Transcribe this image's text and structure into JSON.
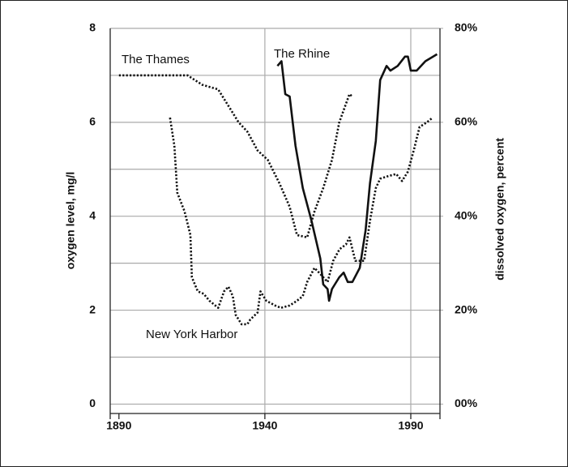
{
  "chart_data": {
    "type": "line",
    "y_label": "oxygen level, mg/l",
    "y2_label": "dissolved oxygen, percent",
    "xlim": [
      1887,
      2000
    ],
    "xticks": [
      1890,
      1940,
      1990
    ],
    "ylim": [
      -0.2,
      8
    ],
    "yticks": [
      0,
      2,
      4,
      6,
      8
    ],
    "yticks_minor": [
      1,
      3,
      5,
      7
    ],
    "y2lim": [
      -2,
      80
    ],
    "y2ticks": [
      {
        "value": 0,
        "label": "00%"
      },
      {
        "value": 20,
        "label": "20%"
      },
      {
        "value": 40,
        "label": "40%"
      },
      {
        "value": 60,
        "label": "60%"
      },
      {
        "value": 80,
        "label": "80%"
      }
    ],
    "grid": true,
    "series": [
      {
        "name": "The Thames",
        "color": "#111111",
        "style": "dotted",
        "x": [
          1890,
          1913.5,
          1918.5,
          1924,
          1927,
          1931,
          1934,
          1937.5,
          1941,
          1945,
          1948.5,
          1951,
          1954.5,
          1957,
          1960,
          1963,
          1965.5,
          1969,
          1970
        ],
        "values": [
          7.0,
          7.0,
          6.8,
          6.7,
          6.4,
          6.0,
          5.8,
          5.4,
          5.2,
          4.7,
          4.2,
          3.6,
          3.55,
          4.1,
          4.6,
          5.2,
          6.0,
          6.6,
          6.55
        ]
      },
      {
        "name": "The Rhine",
        "color": "#111111",
        "style": "solid",
        "x": [
          1944.3,
          1945.7,
          1947,
          1948.5,
          1950.5,
          1953,
          1956,
          1959,
          1960,
          1961.5,
          1962,
          1963,
          1965.5,
          1967,
          1968.4,
          1970,
          1972.5,
          1974.5,
          1976,
          1978,
          1979.5,
          1981.7,
          1983,
          1985.5,
          1988,
          1989,
          1990,
          1992,
          1995,
          1999
        ],
        "values": [
          7.2,
          7.3,
          6.6,
          6.55,
          5.5,
          4.6,
          3.9,
          3.1,
          2.55,
          2.45,
          2.2,
          2.45,
          2.7,
          2.8,
          2.6,
          2.6,
          2.9,
          3.7,
          4.7,
          5.6,
          6.9,
          7.2,
          7.1,
          7.2,
          7.4,
          7.4,
          7.1,
          7.1,
          7.3,
          7.45
        ]
      },
      {
        "name": "New York Harbor",
        "color": "#111111",
        "style": "dotted",
        "x": [
          1907.5,
          1909,
          1910,
          1912.5,
          1914.5,
          1915,
          1917,
          1919,
          1921,
          1924,
          1926,
          1927.5,
          1929,
          1930,
          1932,
          1934,
          1935,
          1937.5,
          1938.5,
          1940.5,
          1943.5,
          1945.5,
          1948.5,
          1951,
          1953,
          1954.5,
          1957,
          1959.3,
          1961.5,
          1963.4,
          1965.6,
          1967.8,
          1969,
          1971,
          1974,
          1976,
          1978,
          1979.5,
          1982,
          1985,
          1987,
          1989,
          1991,
          1993,
          1995.5,
          1997.5
        ],
        "values": [
          6.1,
          5.5,
          4.5,
          4.1,
          3.6,
          2.7,
          2.4,
          2.35,
          2.2,
          2.05,
          2.4,
          2.5,
          2.3,
          1.9,
          1.7,
          1.7,
          1.8,
          1.95,
          2.4,
          2.2,
          2.1,
          2.05,
          2.1,
          2.2,
          2.3,
          2.6,
          2.9,
          2.75,
          2.6,
          3.05,
          3.3,
          3.4,
          3.55,
          3.05,
          3.05,
          3.9,
          4.6,
          4.8,
          4.85,
          4.9,
          4.75,
          4.95,
          5.4,
          5.9,
          6.0,
          6.1
        ]
      }
    ]
  }
}
